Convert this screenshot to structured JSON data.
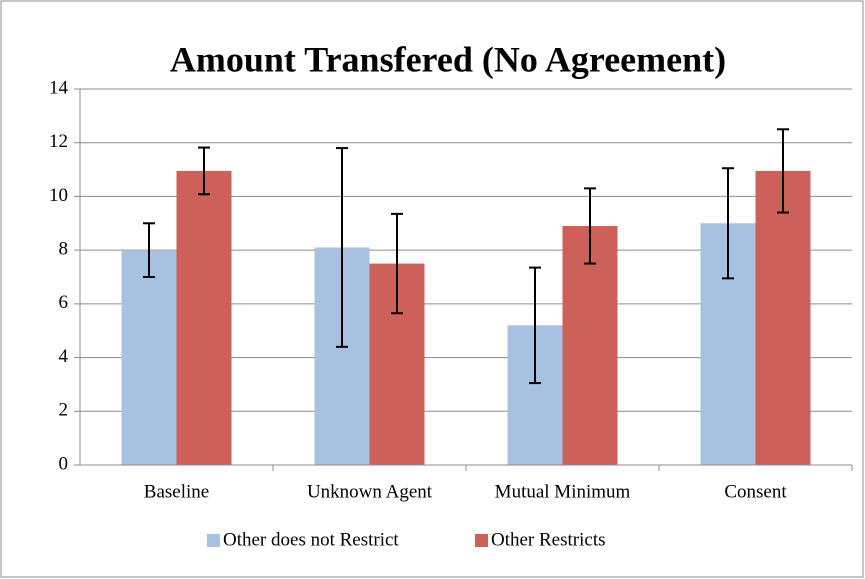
{
  "chart_data": {
    "type": "bar",
    "title": "Amount Transfered (No Agreement)",
    "categories": [
      "Baseline",
      "Unknown Agent",
      "Mutual Minimum",
      "Consent"
    ],
    "series": [
      {
        "name": "Other does not Restrict",
        "color": "#a7c1e0",
        "values": [
          8.0,
          8.1,
          5.2,
          9.0
        ],
        "errors": [
          1.0,
          3.7,
          2.15,
          2.05
        ]
      },
      {
        "name": "Other Restricts",
        "color": "#cd6159",
        "values": [
          10.95,
          7.5,
          8.9,
          10.95
        ],
        "errors": [
          0.87,
          1.85,
          1.4,
          1.55
        ]
      }
    ],
    "ylim": [
      0,
      14
    ],
    "yticks": [
      0,
      2,
      4,
      6,
      8,
      10,
      12,
      14
    ],
    "grid": true,
    "legend": "bottom"
  }
}
